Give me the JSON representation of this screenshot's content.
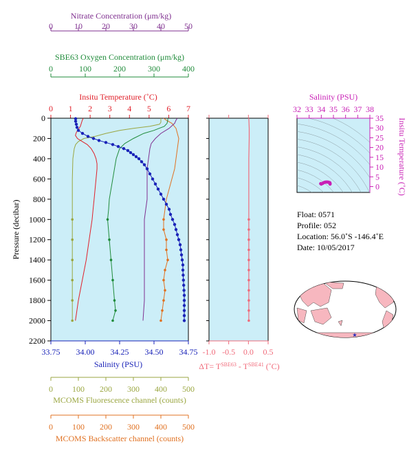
{
  "colors": {
    "nitrate": "#7f2f8f",
    "oxygen": "#1f8b3a",
    "temperature": "#e0202a",
    "salinity": "#1a23b8",
    "fluorescence": "#9aa640",
    "backscatter": "#e07020",
    "dt": "#f06a7a",
    "ts": "#c81fb5",
    "panel_bg": "#cceef8",
    "map_land": "#f7b7bf",
    "map_ocean": "#ffffff"
  },
  "labels": {
    "nitrate_title": "Nitrate Concentration (μm/kg)",
    "oxygen_title": "SBE63 Oxygen Concentration (μm/kg)",
    "temperature_title": "Insitu Temperature (˚C)",
    "pressure_label": "Pressure (decibar)",
    "salinity_label": "Salinity (PSU)",
    "fluorescence_title": "MCOMS Fluorescence channel (counts)",
    "backscatter_title": "MCOMS Backscatter channel (counts)",
    "dt_label_main": "ΔT= T",
    "dt_sup1": "SBE63",
    "dt_mid": " - T",
    "dt_sup2": "SBE41",
    "dt_units": " (˚C)",
    "ts_salinity_title": "Salinity (PSU)",
    "ts_temperature_label": "Insitu Temperature (˚C)"
  },
  "info": {
    "float": "Float:  0571",
    "profile": "Profile:  052",
    "location": "Location:  56.0˚S  -146.4˚E",
    "date": "Date:  10/05/2017"
  },
  "chart_data": [
    {
      "type": "line",
      "name": "profile",
      "axes": {
        "pressure": {
          "range": [
            0,
            2200
          ],
          "ticks": [
            0,
            200,
            400,
            600,
            800,
            1000,
            1200,
            1400,
            1600,
            1800,
            2000,
            2200
          ]
        },
        "salinity": {
          "range": [
            33.75,
            34.75
          ],
          "ticks": [
            "33.75",
            "34.00",
            "34.25",
            "34.50",
            "34.75"
          ]
        },
        "temperature": {
          "range": [
            0,
            7
          ],
          "ticks": [
            "0",
            "1",
            "2",
            "3",
            "4",
            "5",
            "6",
            "7"
          ]
        },
        "nitrate": {
          "range": [
            0,
            50
          ],
          "ticks": [
            "0",
            "10",
            "20",
            "30",
            "40",
            "50"
          ]
        },
        "oxygen": {
          "range": [
            0,
            400
          ],
          "ticks": [
            "0",
            "100",
            "200",
            "300",
            "400"
          ]
        },
        "fluorescence": {
          "range": [
            0,
            500
          ],
          "ticks": [
            "0",
            "100",
            "200",
            "300",
            "400",
            "500"
          ]
        },
        "backscatter": {
          "range": [
            0,
            500
          ],
          "ticks": [
            "0",
            "100",
            "200",
            "300",
            "400",
            "500"
          ]
        }
      },
      "series": {
        "salinity": {
          "pressure": [
            5,
            30,
            60,
            90,
            120,
            150,
            180,
            200,
            220,
            240,
            260,
            280,
            300,
            320,
            340,
            360,
            380,
            400,
            430,
            460,
            500,
            550,
            600,
            650,
            700,
            750,
            800,
            850,
            900,
            950,
            1000,
            1050,
            1100,
            1150,
            1200,
            1250,
            1300,
            1350,
            1400,
            1450,
            1500,
            1550,
            1600,
            1650,
            1700,
            1750,
            1800,
            1850,
            1900,
            1950,
            2000
          ],
          "values": [
            33.93,
            33.93,
            33.935,
            33.94,
            33.95,
            33.98,
            34.02,
            34.06,
            34.1,
            34.15,
            34.2,
            34.24,
            34.28,
            34.31,
            34.33,
            34.35,
            34.37,
            34.39,
            34.41,
            34.43,
            34.45,
            34.47,
            34.49,
            34.51,
            34.53,
            34.55,
            34.57,
            34.59,
            34.61,
            34.62,
            34.635,
            34.65,
            34.66,
            34.67,
            34.68,
            34.69,
            34.695,
            34.7,
            34.705,
            34.71,
            34.71,
            34.712,
            34.714,
            34.716,
            34.718,
            34.72,
            34.72,
            34.72,
            34.72,
            34.72,
            34.72
          ]
        },
        "temperature": {
          "pressure": [
            0,
            20,
            50,
            80,
            110,
            140,
            170,
            200,
            230,
            260,
            300,
            350,
            400,
            450,
            500,
            600,
            700,
            800,
            900,
            1000,
            1200,
            1400,
            1600,
            1800,
            2000
          ],
          "values": [
            1.65,
            1.6,
            1.55,
            1.5,
            1.4,
            1.3,
            1.25,
            1.35,
            1.6,
            1.85,
            2.05,
            2.2,
            2.3,
            2.35,
            2.35,
            2.3,
            2.25,
            2.2,
            2.15,
            2.1,
            1.95,
            1.8,
            1.6,
            1.4,
            1.25
          ]
        },
        "oxygen": {
          "pressure": [
            0,
            20,
            50,
            80,
            100,
            120,
            150,
            200,
            250,
            300,
            400,
            500,
            600,
            700,
            800,
            900,
            1000,
            1200,
            1400,
            1600,
            1800,
            1900,
            2000
          ],
          "values": [
            340,
            340,
            338,
            330,
            315,
            300,
            270,
            240,
            215,
            200,
            190,
            185,
            180,
            175,
            170,
            168,
            165,
            170,
            175,
            180,
            185,
            188,
            180
          ]
        },
        "nitrate": {
          "pressure": [
            0,
            20,
            50,
            100,
            150,
            200,
            250,
            300,
            400,
            500,
            600,
            700,
            800,
            900,
            1000,
            1200,
            1400,
            1600,
            1800,
            2000
          ],
          "values": [
            46,
            45.5,
            45,
            43,
            40,
            38,
            36.5,
            36,
            35.5,
            35,
            35,
            35,
            35,
            34.5,
            34,
            34,
            34,
            34,
            34,
            33.5
          ]
        },
        "fluorescence": {
          "pressure": [
            0,
            20,
            40,
            60,
            80,
            100,
            120,
            150,
            180,
            200,
            230,
            260,
            300,
            400,
            600,
            800,
            1000,
            1200,
            1400,
            1600,
            1800,
            2000
          ],
          "values": [
            400,
            400,
            400,
            395,
            360,
            300,
            250,
            200,
            160,
            120,
            100,
            90,
            85,
            80,
            78,
            78,
            78,
            78,
            78,
            78,
            78,
            78
          ]
        },
        "backscatter": {
          "pressure": [
            0,
            20,
            50,
            100,
            200,
            300,
            400,
            500,
            600,
            700,
            800,
            900,
            1000,
            1100,
            1200,
            1300,
            1400,
            1500,
            1600,
            1700,
            1800,
            1900,
            2000
          ],
          "values": [
            410,
            420,
            440,
            455,
            465,
            460,
            455,
            450,
            440,
            430,
            420,
            415,
            410,
            410,
            420,
            420,
            425,
            415,
            410,
            415,
            410,
            405,
            400
          ]
        },
        "delta_t": {
          "pressure": [
            0,
            100,
            200,
            300,
            400,
            500,
            600,
            700,
            800,
            900,
            1000,
            1100,
            1200,
            1300,
            1400,
            1500,
            1600,
            1700,
            1800,
            1900,
            2000
          ],
          "values": [
            0.01,
            0.02,
            0.02,
            0.015,
            0.01,
            0.01,
            0.01,
            0.01,
            0.01,
            0.01,
            0.01,
            0.01,
            0.01,
            0.01,
            0.01,
            0.01,
            0.01,
            0.01,
            0.01,
            0.01,
            0.01
          ]
        }
      }
    },
    {
      "type": "line",
      "name": "delta_t_panel",
      "xlim": [
        -1.0,
        0.5
      ],
      "xticks": [
        "-1.0",
        "-0.5",
        "0.0",
        "0.5"
      ],
      "ylim": [
        0,
        2200
      ]
    },
    {
      "type": "scatter",
      "name": "ts_diagram",
      "xlim": [
        32,
        38
      ],
      "xticks": [
        "32",
        "33",
        "34",
        "35",
        "36",
        "37",
        "38"
      ],
      "ylim": [
        -3,
        35
      ],
      "yticks": [
        "0",
        "5",
        "10",
        "15",
        "20",
        "25",
        "30",
        "35"
      ],
      "salinity": [
        33.95,
        34.0,
        34.1,
        34.2,
        34.3,
        34.4,
        34.5,
        34.6,
        34.7,
        34.72,
        34.72
      ],
      "temperature": [
        1.5,
        1.3,
        1.6,
        2.0,
        2.2,
        2.3,
        2.3,
        2.2,
        2.0,
        1.6,
        1.3
      ]
    }
  ]
}
